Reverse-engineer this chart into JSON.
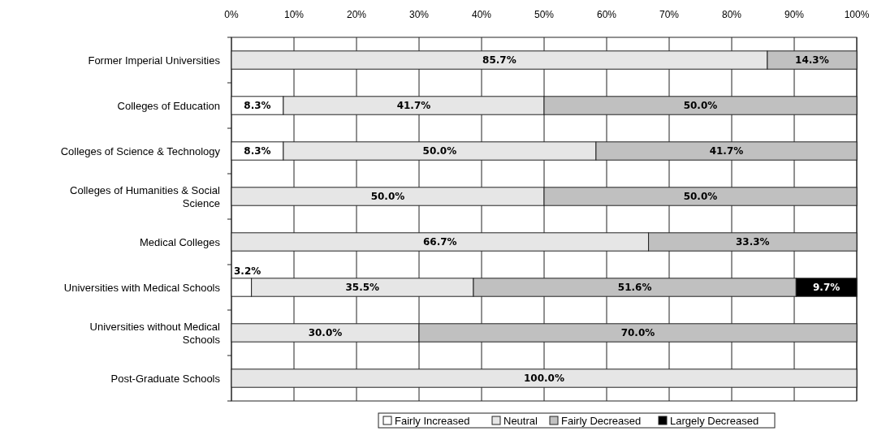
{
  "chart_data": {
    "type": "bar",
    "orientation": "horizontal",
    "stacked": true,
    "categories": [
      "Former Imperial Universities",
      "Colleges of Education",
      "Colleges of Science & Technology",
      "Colleges of Humanities & Social Science",
      "Medical Colleges",
      "Universities with Medical Schools",
      "Universities without Medical Schools",
      "Post-Graduate Schools"
    ],
    "series": [
      {
        "name": "Fairly Increased",
        "color": "#ffffff",
        "values": [
          0,
          8.3,
          8.3,
          0,
          0,
          3.2,
          0,
          0
        ],
        "value_labels": [
          null,
          "8.3%",
          "8.3%",
          null,
          null,
          "3.2%",
          null,
          null
        ]
      },
      {
        "name": "Neutral",
        "color": "#e6e6e6",
        "values": [
          85.7,
          41.7,
          50.0,
          50.0,
          66.7,
          35.5,
          30.0,
          100.0
        ],
        "value_labels": [
          "85.7%",
          "41.7%",
          "50.0%",
          "50.0%",
          "66.7%",
          "35.5%",
          "30.0%",
          "100.0%"
        ]
      },
      {
        "name": "Fairly Decreased",
        "color": "#c0c0c0",
        "values": [
          14.3,
          50.0,
          41.7,
          50.0,
          33.3,
          51.6,
          70.0,
          0
        ],
        "value_labels": [
          "14.3%",
          "50.0%",
          "41.7%",
          "50.0%",
          "33.3%",
          "51.6%",
          "70.0%",
          null
        ]
      },
      {
        "name": "Largely Decreased",
        "color": "#000000",
        "values": [
          0,
          0,
          0,
          0,
          0,
          9.7,
          0,
          0
        ],
        "value_labels": [
          null,
          null,
          null,
          null,
          null,
          "9.7%",
          null,
          null
        ]
      }
    ],
    "xlim": [
      0,
      100
    ],
    "xticks": [
      {
        "value": 0,
        "label": "0%"
      },
      {
        "value": 10,
        "label": "10%"
      },
      {
        "value": 20,
        "label": "20%"
      },
      {
        "value": 30,
        "label": "30%"
      },
      {
        "value": 40,
        "label": "40%"
      },
      {
        "value": 50,
        "label": "50%"
      },
      {
        "value": 60,
        "label": "60%"
      },
      {
        "value": 70,
        "label": "70%"
      },
      {
        "value": 80,
        "label": "80%"
      },
      {
        "value": 90,
        "label": "90%"
      },
      {
        "value": 100,
        "label": "100%"
      }
    ],
    "grid": "x",
    "legend": "bottom"
  }
}
